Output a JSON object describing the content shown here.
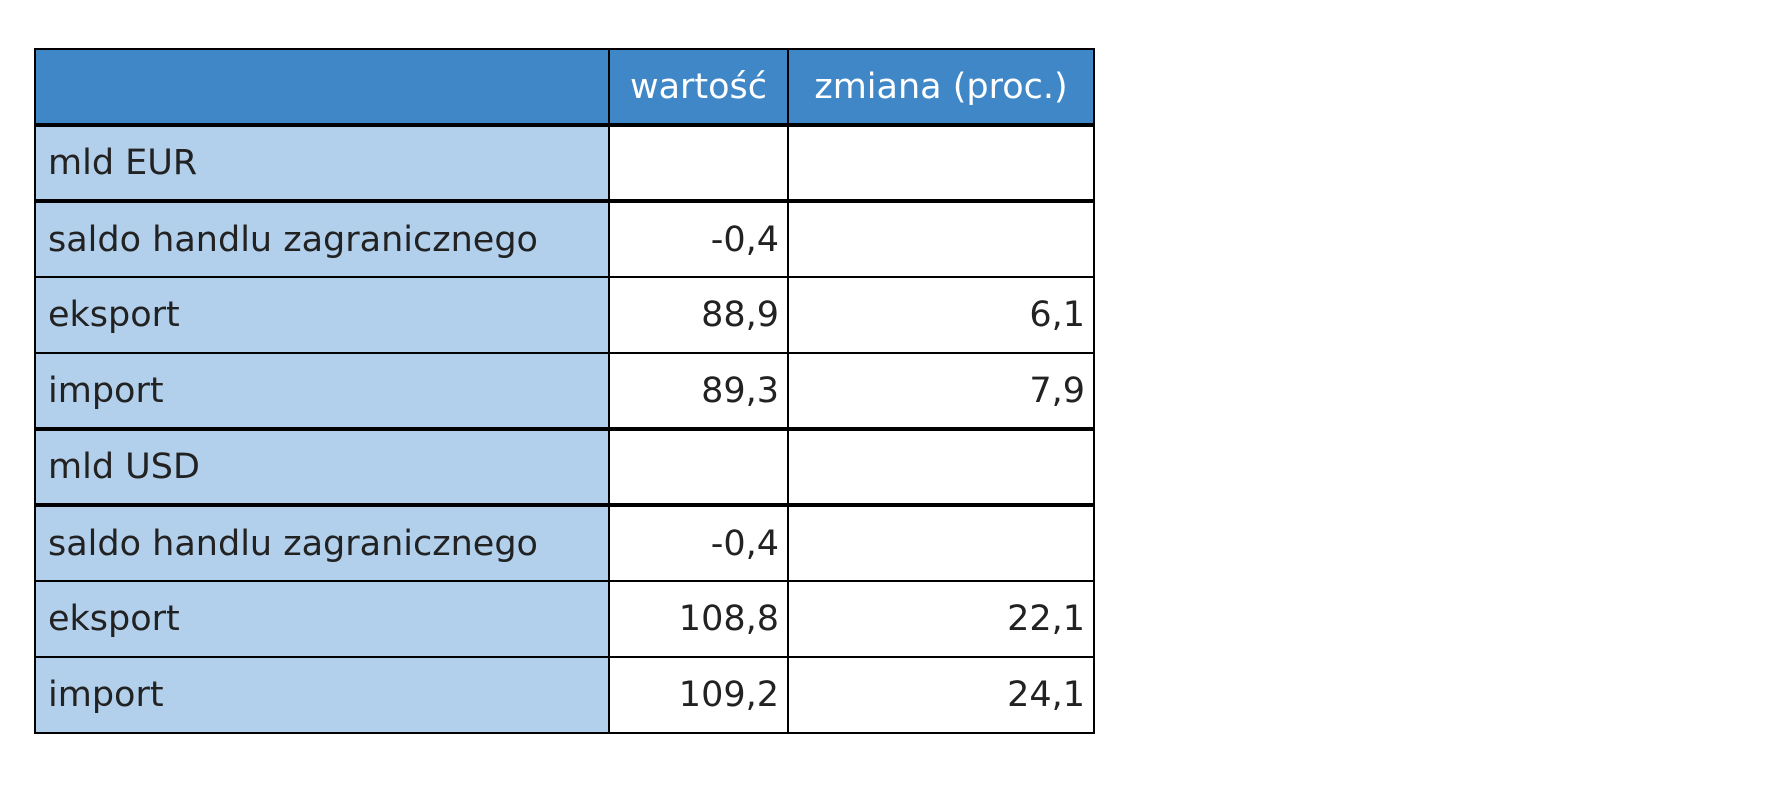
{
  "table": {
    "columns": [
      "wartość",
      "zmiana (proc.)"
    ],
    "rows": [
      {
        "label": "mld EUR",
        "group": true
      },
      {
        "label": "saldo handlu zagranicznego",
        "value": "-0,4"
      },
      {
        "label": "eksport",
        "value": "88,9",
        "change": "6,1"
      },
      {
        "label": "import",
        "value": "89,3",
        "change": "7,9"
      },
      {
        "label": "mld USD",
        "group": true
      },
      {
        "label": "saldo handlu zagranicznego",
        "value": "-0,4"
      },
      {
        "label": "eksport",
        "value": "108,8",
        "change": "22,1"
      },
      {
        "label": "import",
        "value": "109,2",
        "change": "24,1"
      }
    ]
  }
}
